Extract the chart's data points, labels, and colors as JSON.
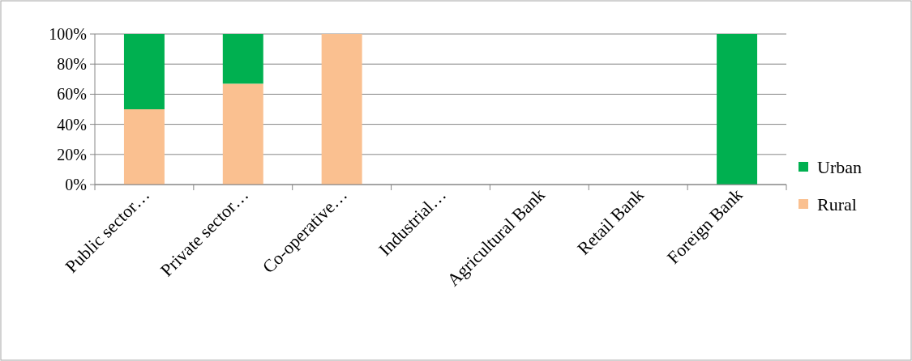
{
  "chart_data": {
    "type": "bar",
    "stacked": true,
    "categories": [
      "Public sector…",
      "Private sector…",
      "Co-operative…",
      "Industrial…",
      "Agricultural Bank",
      "Retail Bank",
      "Foreign Bank"
    ],
    "series": [
      {
        "name": "Rural",
        "color": "#fac090",
        "values": [
          50,
          67,
          100,
          0,
          0,
          0,
          0
        ]
      },
      {
        "name": "Urban",
        "color": "#00b050",
        "values": [
          50,
          33,
          0,
          0,
          0,
          0,
          100
        ]
      }
    ],
    "ylim": [
      0,
      100
    ],
    "yticks": [
      {
        "value": 0,
        "label": "0%"
      },
      {
        "value": 20,
        "label": "20%"
      },
      {
        "value": 40,
        "label": "40%"
      },
      {
        "value": 60,
        "label": "60%"
      },
      {
        "value": 80,
        "label": "80%"
      },
      {
        "value": 100,
        "label": "100%"
      }
    ],
    "grid": "y",
    "legend": "right"
  }
}
